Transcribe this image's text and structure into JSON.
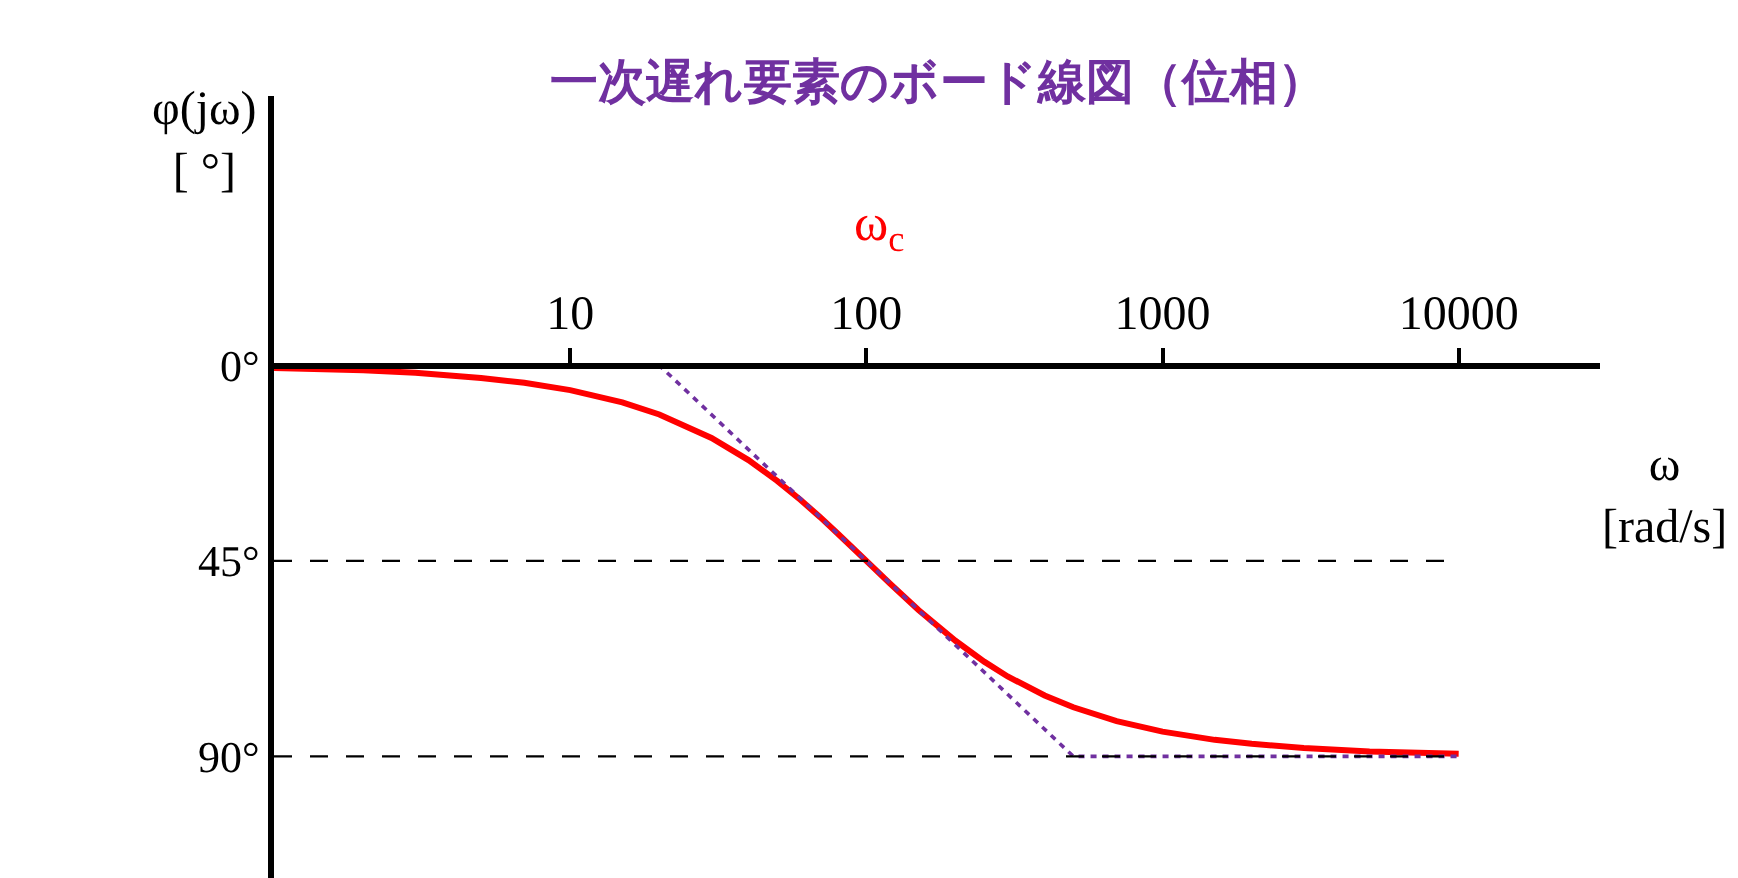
{
  "chart_data": {
    "type": "line",
    "title": "一次遅れ要素のボード線図（位相）",
    "ylabel": "φ(jω)\n[ °]",
    "xlabel": "ω\n[rad/s]",
    "annotations": [
      "ω$_{c}$"
    ],
    "log": "x",
    "xlim": [
      1,
      30000
    ],
    "xticks": [
      10,
      100,
      1000,
      10000
    ],
    "ylim": [
      118,
      -62
    ],
    "yticks": [
      {
        "value": 0,
        "label": "0°"
      },
      {
        "value": 45,
        "label": "45°"
      },
      {
        "value": 90,
        "label": "90°"
      }
    ],
    "grid": false,
    "legend": false,
    "marker": "none",
    "series": [
      {
        "color": "#ff0000",
        "line_style": "solid",
        "x": [
          1,
          2,
          3,
          5,
          7,
          10,
          15,
          20,
          30,
          40,
          50,
          60,
          70,
          80,
          100,
          120,
          150,
          200,
          250,
          300,
          400,
          500,
          700,
          1000,
          1500,
          2000,
          3000,
          5000,
          10000
        ],
        "values": [
          0.6,
          1.1,
          1.7,
          2.9,
          4,
          5.7,
          8.5,
          11.3,
          16.7,
          21.8,
          26.6,
          31,
          35,
          38.7,
          45,
          50.2,
          56.3,
          63.4,
          68.2,
          71.6,
          76,
          78.7,
          81.9,
          84.3,
          86.2,
          87.1,
          88.1,
          88.9,
          89.4
        ]
      },
      {
        "color": "#7030a0",
        "line_style": "dotted",
        "x": [
          1,
          20,
          500,
          10000
        ],
        "values": [
          0,
          0,
          90,
          90
        ]
      }
    ],
    "ref_lines": [
      {
        "axis": "y",
        "value": 45,
        "color": "#000000",
        "line_style": "dashed"
      },
      {
        "axis": "y",
        "value": 90,
        "color": "#000000",
        "line_style": "dashed"
      }
    ]
  }
}
